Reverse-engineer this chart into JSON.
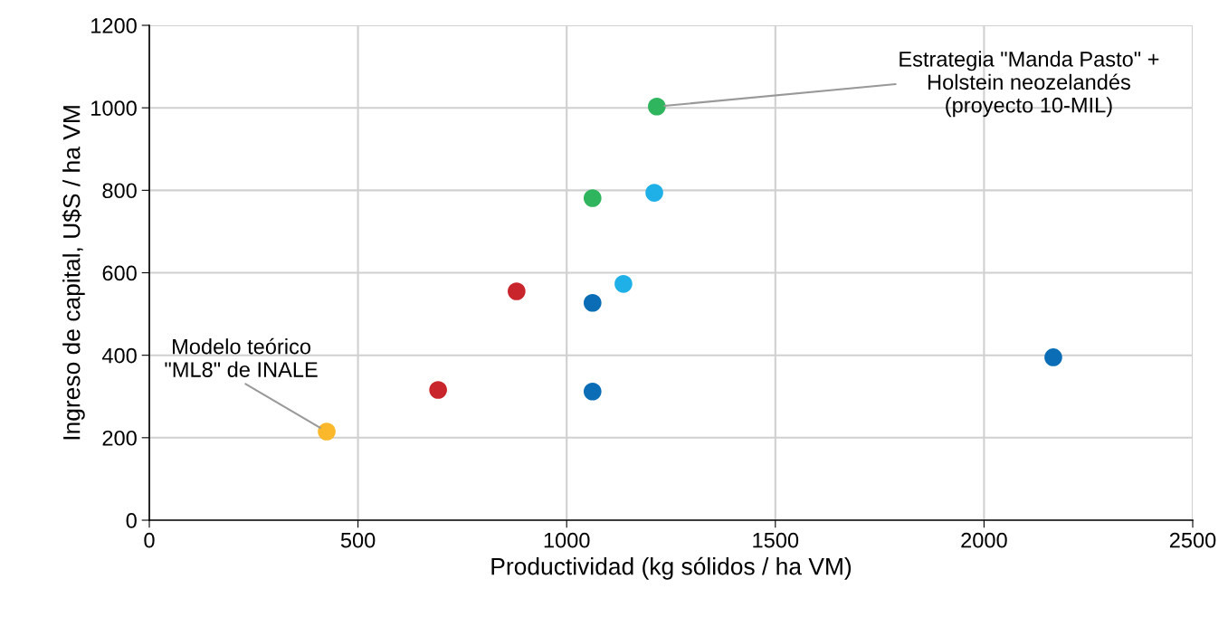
{
  "chart_data": {
    "type": "scatter",
    "xlabel": "Productividad (kg sólidos / ha VM)",
    "ylabel": "Ingreso de capital, U$S / ha VM",
    "series": [
      {
        "color": "#fbb82a",
        "x": [
          425
        ],
        "values": [
          215
        ]
      },
      {
        "color": "#c9252c",
        "x": [
          692,
          880
        ],
        "values": [
          316,
          555
        ]
      },
      {
        "color": "#0a6db5",
        "x": [
          1062,
          1062,
          2166
        ],
        "values": [
          527,
          312,
          395
        ]
      },
      {
        "color": "#1fb0e8",
        "x": [
          1136,
          1210
        ],
        "values": [
          573,
          794
        ]
      },
      {
        "color": "#2fb55d",
        "x": [
          1062,
          1216
        ],
        "values": [
          781,
          1003
        ]
      }
    ],
    "marker": "circle",
    "xlim": [
      0,
      2500
    ],
    "xticks": [
      0,
      500,
      1000,
      1500,
      2000,
      2500
    ],
    "ylim": [
      0,
      1200
    ],
    "yticks": [
      0,
      200,
      400,
      600,
      800,
      1000,
      1200
    ],
    "grid": true,
    "annotations": [
      {
        "text": "Modelo teórico\n\"ML8\" de INALE",
        "x": 425,
        "y": 215
      },
      {
        "text": "Estrategia \"Manda Pasto\" +\nHolstein neozelandés\n(proyecto 10-MIL)",
        "x": 1216,
        "y": 1003
      }
    ]
  }
}
